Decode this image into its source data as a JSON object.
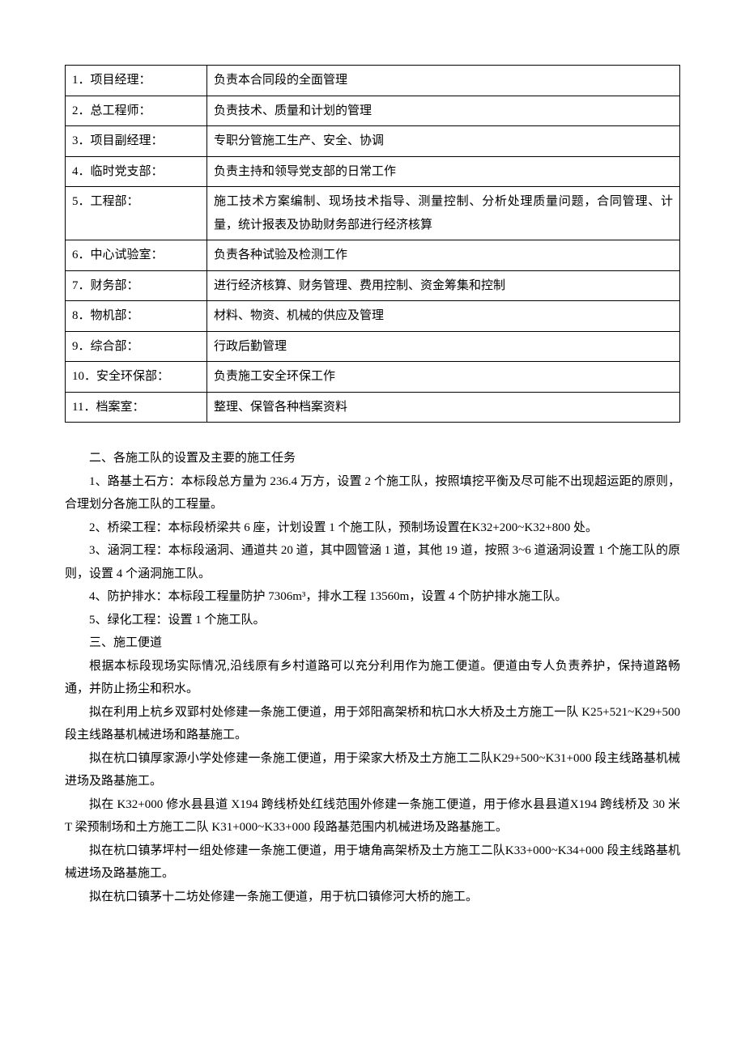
{
  "table": {
    "rows": [
      {
        "left": "1．项目经理：",
        "right": "负责本合同段的全面管理"
      },
      {
        "left": "2．总工程师：",
        "right": "负责技术、质量和计划的管理"
      },
      {
        "left": "3．项目副经理：",
        "right": "专职分管施工生产、安全、协调"
      },
      {
        "left": "4．临时党支部：",
        "right": "负责主持和领导党支部的日常工作"
      },
      {
        "left": "5．工程部：",
        "right": "施工技术方案编制、现场技术指导、测量控制、分析处理质量问题，合同管理、计量，统计报表及协助财务部进行经济核算"
      },
      {
        "left": "6．中心试验室：",
        "right": "负责各种试验及检测工作"
      },
      {
        "left": "7．财务部：",
        "right": "进行经济核算、财务管理、费用控制、资金筹集和控制"
      },
      {
        "left": "8．物机部：",
        "right": "材料、物资、机械的供应及管理"
      },
      {
        "left": "9．综合部：",
        "right": "行政后勤管理"
      },
      {
        "left": "10．安全环保部：",
        "right": "负责施工安全环保工作"
      },
      {
        "left": "11．档案室：",
        "right": "整理、保管各种档案资料"
      }
    ]
  },
  "paragraphs": [
    "二、各施工队的设置及主要的施工任务",
    "1、路基土石方：本标段总方量为 236.4 万方，设置 2 个施工队，按照填挖平衡及尽可能不出现超运距的原则，合理划分各施工队的工程量。",
    "2、桥梁工程：本标段桥梁共 6 座，计划设置 1 个施工队，预制场设置在K32+200~K32+800 处。",
    "3、涵洞工程：本标段涵洞、通道共 20 道，其中圆管涵 1 道，其他 19 道，按照 3~6 道涵洞设置 1 个施工队的原则，设置 4 个涵洞施工队。",
    "4、防护排水：本标段工程量防护 7306m³，排水工程 13560m，设置 4 个防护排水施工队。",
    "5、绿化工程：设置 1 个施工队。",
    "三、施工便道",
    "根据本标段现场实际情况,沿线原有乡村道路可以充分利用作为施工便道。便道由专人负责养护，保持道路畅通，并防止扬尘和积水。",
    "拟在利用上杭乡双郢村处修建一条施工便道，用于郊阳高架桥和杭口水大桥及土方施工一队 K25+521~K29+500 段主线路基机械进场和路基施工。",
    "拟在杭口镇厚家源小学处修建一条施工便道，用于梁家大桥及土方施工二队K29+500~K31+000 段主线路基机械进场及路基施工。",
    "拟在 K32+000 修水县县道 X194 跨线桥处红线范围外修建一条施工便道，用于修水县县道X194 跨线桥及 30 米 T 梁预制场和土方施工二队 K31+000~K33+000 段路基范围内机械进场及路基施工。",
    "拟在杭口镇茅坪村一组处修建一条施工便道，用于塘角高架桥及土方施工二队K33+000~K34+000 段主线路基机械进场及路基施工。",
    "拟在杭口镇茅十二坊处修建一条施工便道，用于杭口镇修河大桥的施工。"
  ]
}
